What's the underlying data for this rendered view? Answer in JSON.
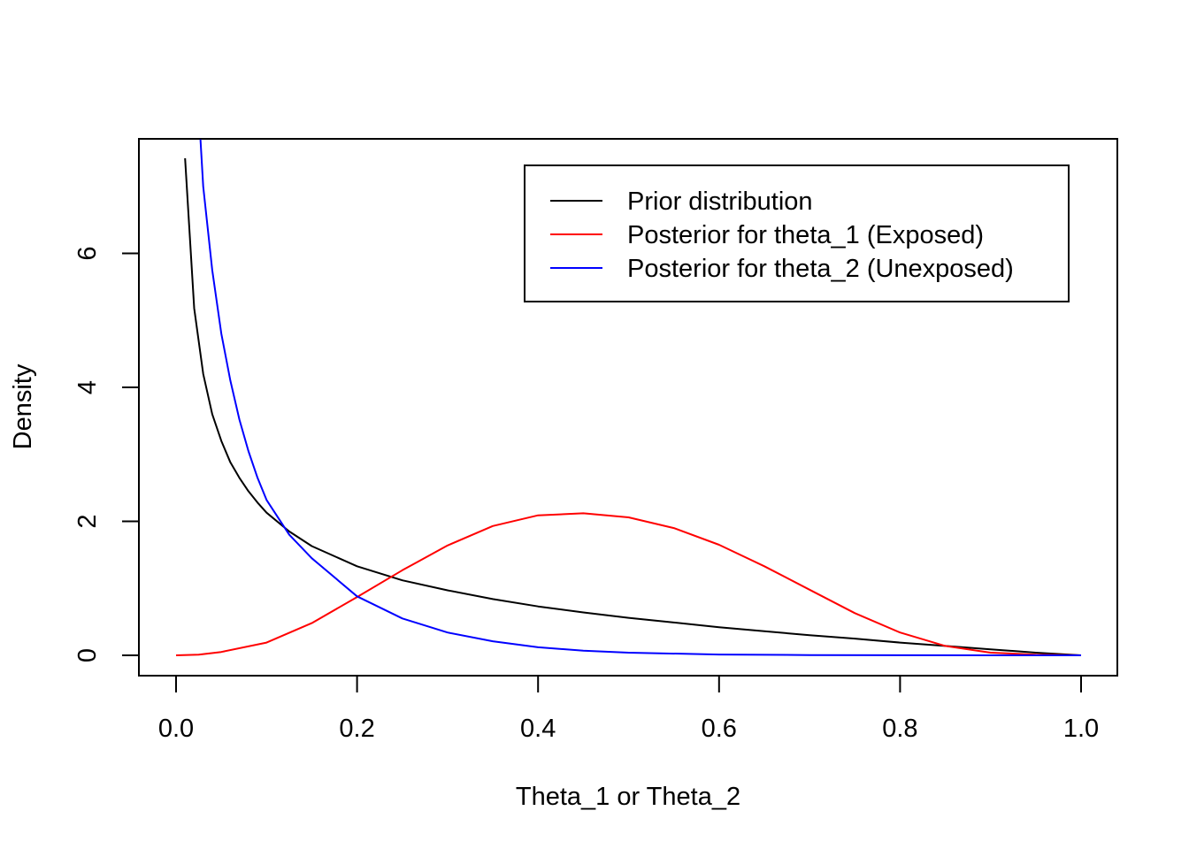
{
  "chart_data": {
    "type": "line",
    "title": "",
    "xlabel": "Theta_1 or Theta_2",
    "ylabel": "Density",
    "xlim": [
      0.0,
      1.0
    ],
    "ylim": [
      0,
      7.7
    ],
    "xticks": [
      "0.0",
      "0.2",
      "0.4",
      "0.6",
      "0.8",
      "1.0"
    ],
    "yticks": [
      "0",
      "2",
      "4",
      "6"
    ],
    "legend_position": "top-right",
    "grid": false,
    "series": [
      {
        "name": "Prior distribution",
        "color": "#000000",
        "x": [
          0.01,
          0.02,
          0.03,
          0.04,
          0.05,
          0.06,
          0.07,
          0.08,
          0.09,
          0.1,
          0.125,
          0.15,
          0.2,
          0.25,
          0.3,
          0.35,
          0.4,
          0.45,
          0.5,
          0.55,
          0.6,
          0.65,
          0.7,
          0.75,
          0.8,
          0.85,
          0.9,
          0.95,
          1.0
        ],
        "y": [
          7.42,
          5.18,
          4.2,
          3.6,
          3.2,
          2.88,
          2.65,
          2.45,
          2.28,
          2.13,
          1.85,
          1.63,
          1.33,
          1.12,
          0.97,
          0.84,
          0.73,
          0.64,
          0.56,
          0.49,
          0.42,
          0.36,
          0.3,
          0.25,
          0.19,
          0.14,
          0.09,
          0.04,
          0.0
        ]
      },
      {
        "name": "Posterior for theta_1 (Exposed)",
        "color": "#ff0000",
        "x": [
          0.0,
          0.025,
          0.05,
          0.1,
          0.15,
          0.2,
          0.25,
          0.3,
          0.35,
          0.4,
          0.45,
          0.5,
          0.55,
          0.6,
          0.65,
          0.7,
          0.75,
          0.8,
          0.85,
          0.9,
          0.95,
          1.0
        ],
        "y": [
          0.0,
          0.01,
          0.05,
          0.19,
          0.48,
          0.87,
          1.27,
          1.64,
          1.93,
          2.09,
          2.12,
          2.06,
          1.9,
          1.65,
          1.33,
          0.98,
          0.63,
          0.34,
          0.14,
          0.04,
          0.01,
          0.0
        ]
      },
      {
        "name": "Posterior for theta_2 (Unexposed)",
        "color": "#0000ff",
        "x": [
          0.027,
          0.03,
          0.04,
          0.05,
          0.06,
          0.07,
          0.08,
          0.09,
          0.1,
          0.125,
          0.15,
          0.2,
          0.25,
          0.3,
          0.35,
          0.4,
          0.45,
          0.5,
          0.6,
          0.7,
          0.8,
          0.9,
          1.0
        ],
        "y": [
          7.7,
          7.0,
          5.75,
          4.8,
          4.1,
          3.52,
          3.05,
          2.65,
          2.32,
          1.8,
          1.45,
          0.88,
          0.55,
          0.34,
          0.21,
          0.12,
          0.07,
          0.04,
          0.012,
          0.004,
          0.001,
          0.0,
          0.0
        ]
      }
    ]
  }
}
